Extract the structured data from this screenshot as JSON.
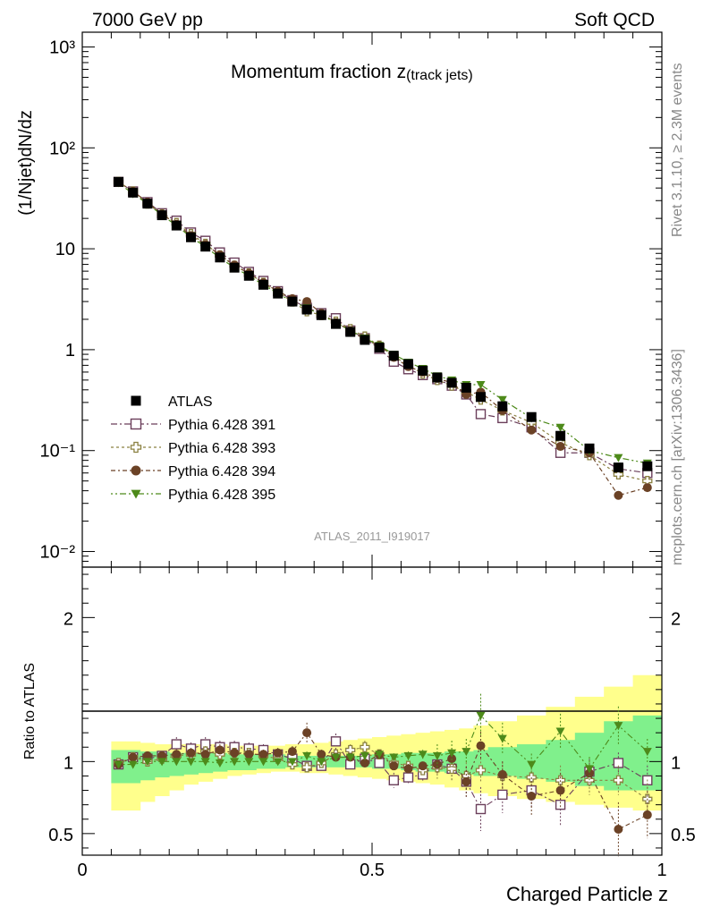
{
  "header": {
    "left": "7000 GeV pp",
    "right": "Soft QCD"
  },
  "side_labels": {
    "top": "Rivet 3.1.10, ≥ 2.3M events",
    "bottom": "mcplots.cern.ch [arXiv:1306.3436]"
  },
  "chart_data": [
    {
      "type": "scatter",
      "panel": "main",
      "title_main": "Momentum fraction z",
      "title_sub": "(track jets)",
      "analysis_id": "ATLAS_2011_I919017",
      "ylabel": "(1/Njet)dN/dz",
      "xlabel": "",
      "yscale": "log",
      "xlim": [
        0,
        1
      ],
      "ylim": [
        0.007,
        1400
      ],
      "ytick_labels": {
        "0.01": "10⁻²",
        "0.1": "10⁻¹",
        "1": "1",
        "10": "10",
        "100": "10²",
        "1000": "10³"
      },
      "grid": false,
      "legend": "bottom-left",
      "x": [
        0.0625,
        0.0875,
        0.1125,
        0.1375,
        0.1625,
        0.1875,
        0.2125,
        0.2375,
        0.2625,
        0.2875,
        0.3125,
        0.3375,
        0.3625,
        0.3875,
        0.4125,
        0.4375,
        0.4625,
        0.4875,
        0.5125,
        0.5375,
        0.5625,
        0.5875,
        0.6125,
        0.6375,
        0.6625,
        0.6875,
        0.725,
        0.775,
        0.825,
        0.875,
        0.925,
        0.975
      ],
      "series": [
        {
          "name": "ATLAS",
          "color": "#000000",
          "marker": "square-filled",
          "values": [
            46,
            36,
            28,
            21.5,
            17,
            13,
            10.5,
            8.2,
            6.5,
            5.4,
            4.4,
            3.6,
            3.0,
            2.5,
            2.2,
            1.8,
            1.5,
            1.25,
            1.05,
            0.87,
            0.72,
            0.62,
            0.53,
            0.47,
            0.42,
            0.34,
            0.275,
            0.215,
            0.14,
            0.105,
            0.068,
            0.07
          ]
        },
        {
          "name": "Pythia 6.428 391",
          "color": "#6b3f5b",
          "marker": "square-open",
          "values": [
            46,
            37,
            29,
            22.5,
            19,
            14.5,
            12,
            9.2,
            7.3,
            5.9,
            4.8,
            3.8,
            3.1,
            2.6,
            2.3,
            2.05,
            1.55,
            1.3,
            1.02,
            0.76,
            0.64,
            0.56,
            0.51,
            0.44,
            0.36,
            0.23,
            0.21,
            0.17,
            0.095,
            0.095,
            0.066,
            0.06
          ]
        },
        {
          "name": "Pythia 6.428 393",
          "color": "#8a8040",
          "marker": "cross-open",
          "values": [
            46,
            37,
            28,
            22,
            18,
            14,
            11.2,
            8.6,
            6.8,
            5.7,
            4.6,
            3.7,
            3.0,
            2.4,
            2.2,
            1.9,
            1.6,
            1.35,
            1.1,
            0.86,
            0.7,
            0.58,
            0.5,
            0.44,
            0.38,
            0.32,
            0.25,
            0.19,
            0.12,
            0.09,
            0.058,
            0.05
          ]
        },
        {
          "name": "Pythia 6.428 394",
          "color": "#6b4226",
          "marker": "circle-filled",
          "values": [
            46,
            37,
            29,
            22,
            17.5,
            13.5,
            11,
            8.7,
            6.9,
            5.7,
            4.6,
            3.8,
            3.2,
            3.0,
            2.3,
            1.85,
            1.55,
            1.25,
            1.1,
            0.84,
            0.68,
            0.6,
            0.52,
            0.47,
            0.36,
            0.38,
            0.25,
            0.16,
            0.11,
            0.095,
            0.036,
            0.043
          ]
        },
        {
          "name": "Pythia 6.428 395",
          "color": "#4d8a1a",
          "marker": "triangle-down-filled",
          "values": [
            45,
            35,
            28,
            21.5,
            17,
            13,
            10.5,
            8.1,
            6.5,
            5.4,
            4.4,
            3.6,
            3.0,
            2.6,
            2.2,
            1.85,
            1.55,
            1.3,
            1.1,
            0.9,
            0.75,
            0.65,
            0.55,
            0.5,
            0.45,
            0.45,
            0.32,
            0.21,
            0.17,
            0.1,
            0.085,
            0.075
          ]
        }
      ]
    },
    {
      "type": "scatter",
      "panel": "ratio",
      "ylabel": "Ratio to ATLAS",
      "xlabel": "Charged Particle z",
      "xlim": [
        0,
        1
      ],
      "ylim": [
        0.35,
        2.35
      ],
      "yticks": [
        0.5,
        1,
        2
      ],
      "xticks": [
        0,
        0.5,
        1
      ],
      "reference_line": 1,
      "grid": false,
      "x_bins": [
        [
          0.05,
          0.075
        ],
        [
          0.075,
          0.1
        ],
        [
          0.1,
          0.125
        ],
        [
          0.125,
          0.15
        ],
        [
          0.15,
          0.175
        ],
        [
          0.175,
          0.2
        ],
        [
          0.2,
          0.225
        ],
        [
          0.225,
          0.25
        ],
        [
          0.25,
          0.275
        ],
        [
          0.275,
          0.3
        ],
        [
          0.3,
          0.325
        ],
        [
          0.325,
          0.35
        ],
        [
          0.35,
          0.375
        ],
        [
          0.375,
          0.4
        ],
        [
          0.4,
          0.425
        ],
        [
          0.425,
          0.45
        ],
        [
          0.45,
          0.475
        ],
        [
          0.475,
          0.5
        ],
        [
          0.5,
          0.525
        ],
        [
          0.525,
          0.55
        ],
        [
          0.55,
          0.575
        ],
        [
          0.575,
          0.6
        ],
        [
          0.6,
          0.625
        ],
        [
          0.625,
          0.65
        ],
        [
          0.65,
          0.675
        ],
        [
          0.675,
          0.7
        ],
        [
          0.7,
          0.75
        ],
        [
          0.75,
          0.8
        ],
        [
          0.8,
          0.85
        ],
        [
          0.85,
          0.9
        ],
        [
          0.9,
          0.95
        ],
        [
          0.95,
          1.0
        ]
      ],
      "band_stat": {
        "color": "#80f08c",
        "lower": [
          0.85,
          0.85,
          0.87,
          0.89,
          0.9,
          0.91,
          0.92,
          0.93,
          0.94,
          0.94,
          0.95,
          0.95,
          0.96,
          0.96,
          0.96,
          0.96,
          0.96,
          0.96,
          0.95,
          0.95,
          0.94,
          0.93,
          0.93,
          0.92,
          0.91,
          0.9,
          0.9,
          0.88,
          0.86,
          0.83,
          0.8,
          0.8
        ],
        "upper": [
          1.08,
          1.08,
          1.07,
          1.07,
          1.06,
          1.06,
          1.06,
          1.06,
          1.05,
          1.05,
          1.05,
          1.05,
          1.04,
          1.04,
          1.04,
          1.04,
          1.04,
          1.04,
          1.05,
          1.05,
          1.06,
          1.06,
          1.06,
          1.07,
          1.07,
          1.08,
          1.1,
          1.12,
          1.15,
          1.2,
          1.28,
          1.32
        ]
      },
      "band_total": {
        "color": "#ffff8c",
        "lower": [
          0.66,
          0.66,
          0.72,
          0.76,
          0.8,
          0.84,
          0.86,
          0.88,
          0.9,
          0.91,
          0.92,
          0.93,
          0.93,
          0.92,
          0.92,
          0.91,
          0.9,
          0.89,
          0.88,
          0.87,
          0.86,
          0.85,
          0.84,
          0.82,
          0.8,
          0.78,
          0.76,
          0.74,
          0.72,
          0.7,
          0.68,
          0.66
        ],
        "upper": [
          1.14,
          1.14,
          1.13,
          1.12,
          1.12,
          1.12,
          1.12,
          1.12,
          1.11,
          1.11,
          1.11,
          1.11,
          1.12,
          1.12,
          1.13,
          1.14,
          1.15,
          1.16,
          1.17,
          1.18,
          1.19,
          1.2,
          1.21,
          1.22,
          1.23,
          1.25,
          1.28,
          1.32,
          1.38,
          1.45,
          1.52,
          1.6
        ]
      },
      "series": [
        {
          "name": "Pythia 6.428 391",
          "color": "#6b3f5b",
          "values": [
            0.98,
            1.03,
            1.02,
            1.04,
            1.12,
            1.09,
            1.12,
            1.1,
            1.1,
            1.09,
            1.08,
            1.05,
            1.02,
            0.97,
            0.97,
            1.14,
            0.98,
            1.02,
            0.99,
            0.87,
            0.89,
            0.91,
            0.98,
            0.95,
            0.86,
            0.67,
            0.77,
            0.8,
            0.7,
            0.93,
            0.99,
            0.87
          ]
        },
        {
          "name": "Pythia 6.428 393",
          "color": "#8a8040",
          "values": [
            0.99,
            1.03,
            1.0,
            1.02,
            1.04,
            1.05,
            1.07,
            1.05,
            1.06,
            1.06,
            1.04,
            1.02,
            0.98,
            0.96,
            0.99,
            1.05,
            1.08,
            1.1,
            1.05,
            0.99,
            0.97,
            0.94,
            0.96,
            0.95,
            0.9,
            0.94,
            0.9,
            0.89,
            0.87,
            0.87,
            0.87,
            0.74
          ]
        },
        {
          "name": "Pythia 6.428 394",
          "color": "#6b4226",
          "values": [
            0.98,
            1.03,
            1.04,
            1.04,
            1.05,
            1.06,
            1.05,
            1.08,
            1.06,
            1.05,
            1.05,
            1.06,
            1.07,
            1.2,
            1.05,
            1.03,
            1.03,
            0.99,
            1.05,
            0.97,
            0.95,
            0.97,
            0.98,
            1.02,
            0.86,
            1.11,
            0.91,
            0.76,
            0.8,
            0.92,
            0.53,
            0.63
          ]
        },
        {
          "name": "Pythia 6.428 395",
          "color": "#4d8a1a",
          "values": [
            0.98,
            0.98,
            1.0,
            1.0,
            1.0,
            1.0,
            1.0,
            0.99,
            1.0,
            1.0,
            1.0,
            1.0,
            1.0,
            1.04,
            1.0,
            1.03,
            1.03,
            1.04,
            1.05,
            1.03,
            1.04,
            1.05,
            1.04,
            1.06,
            1.07,
            1.32,
            1.16,
            0.98,
            1.21,
            0.95,
            1.25,
            1.07
          ]
        }
      ]
    }
  ]
}
